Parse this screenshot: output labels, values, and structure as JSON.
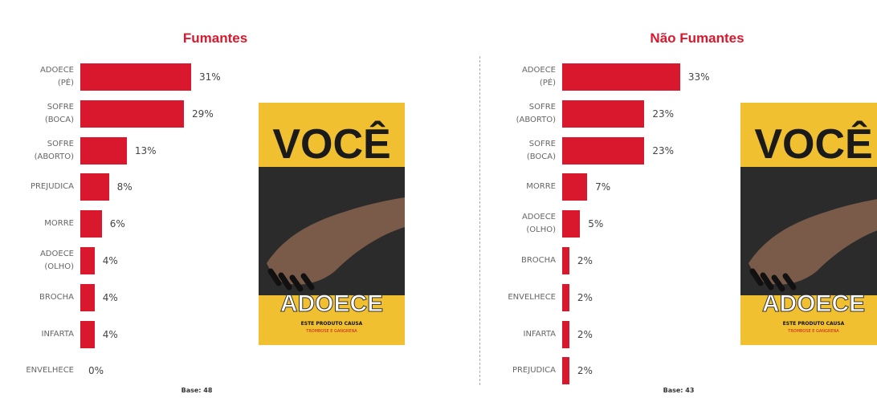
{
  "chart_data": [
    {
      "type": "bar",
      "orientation": "horizontal",
      "title": "Fumantes",
      "categories": [
        "ADOECE\n(PÉ)",
        "SOFRE\n(BOCA)",
        "SOFRE\n(ABORTO)",
        "PREJUDICA",
        "MORRE",
        "ADOECE\n(OLHO)",
        "BROCHA",
        "INFARTA",
        "ENVELHECE"
      ],
      "values": [
        31,
        29,
        13,
        8,
        6,
        4,
        4,
        4,
        0
      ],
      "value_labels": [
        "31%",
        "29%",
        "13%",
        "8%",
        "6%",
        "4%",
        "4%",
        "4%",
        "0%"
      ],
      "color": "#d9182e",
      "note": "Base: 48",
      "poster": {
        "top": "VOCÊ",
        "bottom": "ADOECE",
        "line1": "ESTE PRODUTO CAUSA",
        "line2": "TROMBOSE E GANGRENA"
      }
    },
    {
      "type": "bar",
      "orientation": "horizontal",
      "title": "Não Fumantes",
      "categories": [
        "ADOECE\n(PÉ)",
        "SOFRE\n(ABORTO)",
        "SOFRE\n(BOCA)",
        "MORRE",
        "ADOECE\n(OLHO)",
        "BROCHA",
        "ENVELHECE",
        "INFARTA",
        "PREJUDICA"
      ],
      "values": [
        33,
        23,
        23,
        7,
        5,
        2,
        2,
        2,
        2
      ],
      "value_labels": [
        "33%",
        "23%",
        "23%",
        "7%",
        "5%",
        "2%",
        "2%",
        "2%",
        "2%"
      ],
      "color": "#d9182e",
      "note": "Base: 43",
      "poster": {
        "top": "VOCÊ",
        "bottom": "ADOECE",
        "line1": "ESTE PRODUTO CAUSA",
        "line2": "TROMBOSE E GANGRENA"
      }
    }
  ]
}
